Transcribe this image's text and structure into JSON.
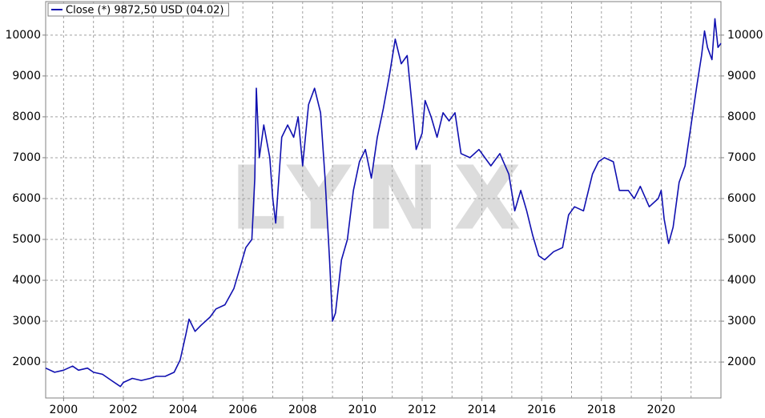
{
  "chart_data": {
    "type": "line",
    "watermark": "LYNX",
    "xlim": [
      1999.4,
      2022.0
    ],
    "xticks": [
      2000,
      2002,
      2004,
      2006,
      2008,
      2010,
      2012,
      2014,
      2016,
      2018,
      2020
    ],
    "ylim": [
      1120,
      10820
    ],
    "yticks": [
      2000,
      3000,
      4000,
      5000,
      6000,
      7000,
      8000,
      9000,
      10000
    ],
    "grid": true,
    "legend": "top-left",
    "series": [
      {
        "name": "Close (*) 9872,50 USD (04.02)",
        "color": "#1010b0",
        "x": [
          1999.4,
          1999.7,
          2000.0,
          2000.3,
          2000.5,
          2000.8,
          2001.0,
          2001.3,
          2001.6,
          2001.9,
          2002.0,
          2002.3,
          2002.6,
          2002.9,
          2003.1,
          2003.4,
          2003.7,
          2003.9,
          2004.1,
          2004.2,
          2004.4,
          2004.6,
          2004.9,
          2005.1,
          2005.4,
          2005.7,
          2005.9,
          2006.1,
          2006.3,
          2006.4,
          2006.45,
          2006.55,
          2006.7,
          2006.9,
          2007.0,
          2007.1,
          2007.3,
          2007.5,
          2007.7,
          2007.85,
          2008.0,
          2008.2,
          2008.4,
          2008.6,
          2008.75,
          2008.9,
          2009.0,
          2009.1,
          2009.3,
          2009.5,
          2009.7,
          2009.9,
          2010.1,
          2010.3,
          2010.5,
          2010.7,
          2010.9,
          2011.1,
          2011.3,
          2011.5,
          2011.7,
          2011.8,
          2012.0,
          2012.1,
          2012.3,
          2012.5,
          2012.7,
          2012.9,
          2013.1,
          2013.3,
          2013.6,
          2013.9,
          2014.1,
          2014.3,
          2014.6,
          2014.9,
          2015.1,
          2015.3,
          2015.5,
          2015.7,
          2015.9,
          2016.1,
          2016.4,
          2016.7,
          2016.9,
          2017.1,
          2017.4,
          2017.7,
          2017.9,
          2018.1,
          2018.4,
          2018.6,
          2018.9,
          2019.1,
          2019.3,
          2019.6,
          2019.9,
          2020.0,
          2020.1,
          2020.25,
          2020.4,
          2020.6,
          2020.8,
          2021.0,
          2021.2,
          2021.35,
          2021.45,
          2021.55,
          2021.7,
          2021.8,
          2021.9,
          2022.0
        ],
        "values": [
          1850,
          1750,
          1800,
          1900,
          1800,
          1850,
          1750,
          1700,
          1550,
          1400,
          1500,
          1600,
          1550,
          1600,
          1650,
          1650,
          1750,
          2050,
          2700,
          3050,
          2750,
          2900,
          3100,
          3300,
          3400,
          3800,
          4300,
          4800,
          5000,
          6500,
          8700,
          7000,
          7800,
          7000,
          6000,
          5400,
          7500,
          7800,
          7500,
          8000,
          6800,
          8300,
          8700,
          8100,
          6500,
          4500,
          3000,
          3200,
          4500,
          5000,
          6200,
          6900,
          7200,
          6500,
          7500,
          8200,
          9000,
          9900,
          9300,
          9500,
          8000,
          7200,
          7600,
          8400,
          8000,
          7500,
          8100,
          7900,
          8100,
          7100,
          7000,
          7200,
          7000,
          6800,
          7100,
          6600,
          5700,
          6200,
          5700,
          5100,
          4600,
          4500,
          4700,
          4800,
          5600,
          5800,
          5700,
          6600,
          6900,
          7000,
          6900,
          6200,
          6200,
          6000,
          6300,
          5800,
          6000,
          6200,
          5500,
          4900,
          5300,
          6400,
          6800,
          7800,
          8800,
          9500,
          10100,
          9700,
          9400,
          10400,
          9700,
          9800
        ]
      }
    ]
  }
}
